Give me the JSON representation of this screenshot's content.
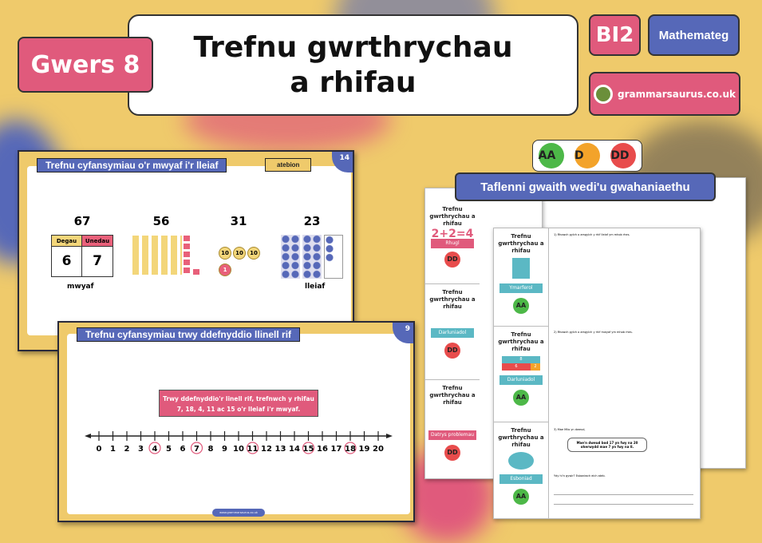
{
  "header": {
    "lesson": "Gwers 8",
    "title_line1": "Trefnu gwrthrychau",
    "title_line2": "a rhifau",
    "level": "BI2",
    "subject": "Mathemateg",
    "website": "grammarsaurus.co.uk"
  },
  "slide1": {
    "title": "Trefnu cyfansymiau o'r mwyaf i'r lleiaf",
    "answers_tag": "atebion",
    "page": "14",
    "numbers": [
      "67",
      "56",
      "31",
      "23"
    ],
    "place_value": {
      "tens_header": "Degau",
      "units_header": "Unedau",
      "tens": "6",
      "units": "7"
    },
    "coins": [
      "10",
      "10",
      "10",
      "1"
    ],
    "largest_label": "mwyaf",
    "smallest_label": "lleiaf"
  },
  "slide2": {
    "title": "Trefnu cyfansymiau trwy ddefnyddio llinell rif",
    "page": "9",
    "instruction_line1": "Trwy ddefnyddio'r linell rif, trefnwch y rhifau",
    "instruction_line2": "7, 18, 4, 11 ac 15 o'r lleiaf i'r mwyaf.",
    "number_line": {
      "min": 0,
      "max": 20,
      "circled": [
        4,
        7,
        11,
        15,
        18
      ]
    },
    "footer": "www.grammarsaurus.co.uk"
  },
  "worksheets": {
    "banner": "Taflenni gwaith wedi'u gwahaniaethu",
    "levels": [
      "AA",
      "D",
      "DD"
    ],
    "sheet_title": "Trefnu gwrthrychau a rhifau",
    "back_labels": [
      "Rhugl",
      "Darluniadol",
      "Datrys problemau"
    ],
    "front_labels": [
      "Ymarferol",
      "Darluniadol",
      "Esboniad"
    ],
    "front_badge": "AA",
    "back_badge": "DD",
    "equation": "2+2=4",
    "bar_model": {
      "whole": "8",
      "part1": "6",
      "part2": "2"
    },
    "speech": "Mae'n dweud bod 17 yn fwy na 20 oherwydd mae 7 yn fwy na 8.",
    "q1": "1) Rhowch gylch o amgylch y rhif lleiaf ym mhob rhes.",
    "q2": "2) Rhowch gylch o amgylch y rhif mwyaf ym mhob rhes.",
    "q3": "3) Mae Milo yn dweud,",
    "q_answer": "Ydy hi'n gywir? Esboniwch eich ateb."
  },
  "colors": {
    "background": "#efca6b",
    "pink": "#e05a7c",
    "blue": "#5668b8",
    "teal": "#5bb8c4"
  }
}
